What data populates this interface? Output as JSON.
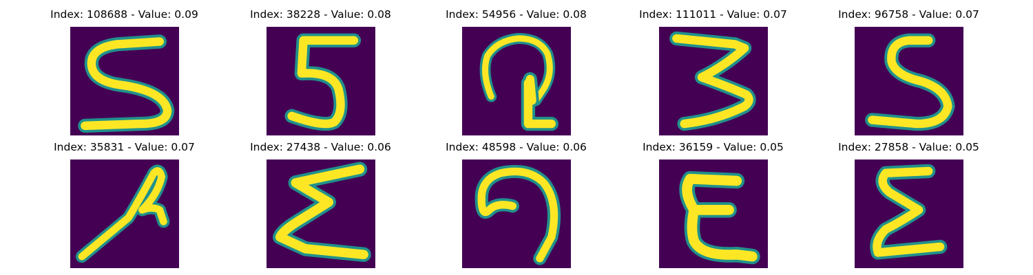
{
  "colors": {
    "background": "#440154",
    "mid": "#21918c",
    "high": "#fde725"
  },
  "images": [
    {
      "index": "108688",
      "value": "0.09",
      "title": "Index: 108688 - Value: 0.09",
      "glyph": "5"
    },
    {
      "index": "38228",
      "value": "0.08",
      "title": "Index: 38228 - Value: 0.08",
      "glyph": "5"
    },
    {
      "index": "54956",
      "value": "0.08",
      "title": "Index: 54956 - Value: 0.08",
      "glyph": "curl"
    },
    {
      "index": "111011",
      "value": "0.07",
      "title": "Index: 111011 - Value: 0.07",
      "glyph": "3"
    },
    {
      "index": "96758",
      "value": "0.07",
      "title": "Index: 96758 - Value: 0.07",
      "glyph": "5"
    },
    {
      "index": "35831",
      "value": "0.07",
      "title": "Index: 35831 - Value: 0.07",
      "glyph": "loop"
    },
    {
      "index": "27438",
      "value": "0.06",
      "title": "Index: 27438 - Value: 0.06",
      "glyph": "sigma"
    },
    {
      "index": "48598",
      "value": "0.06",
      "title": "Index: 48598 - Value: 0.06",
      "glyph": "9"
    },
    {
      "index": "36159",
      "value": "0.05",
      "title": "Index: 36159 - Value: 0.05",
      "glyph": "E"
    },
    {
      "index": "27858",
      "value": "0.05",
      "title": "Index: 27858 - Value: 0.05",
      "glyph": "sigma"
    }
  ]
}
